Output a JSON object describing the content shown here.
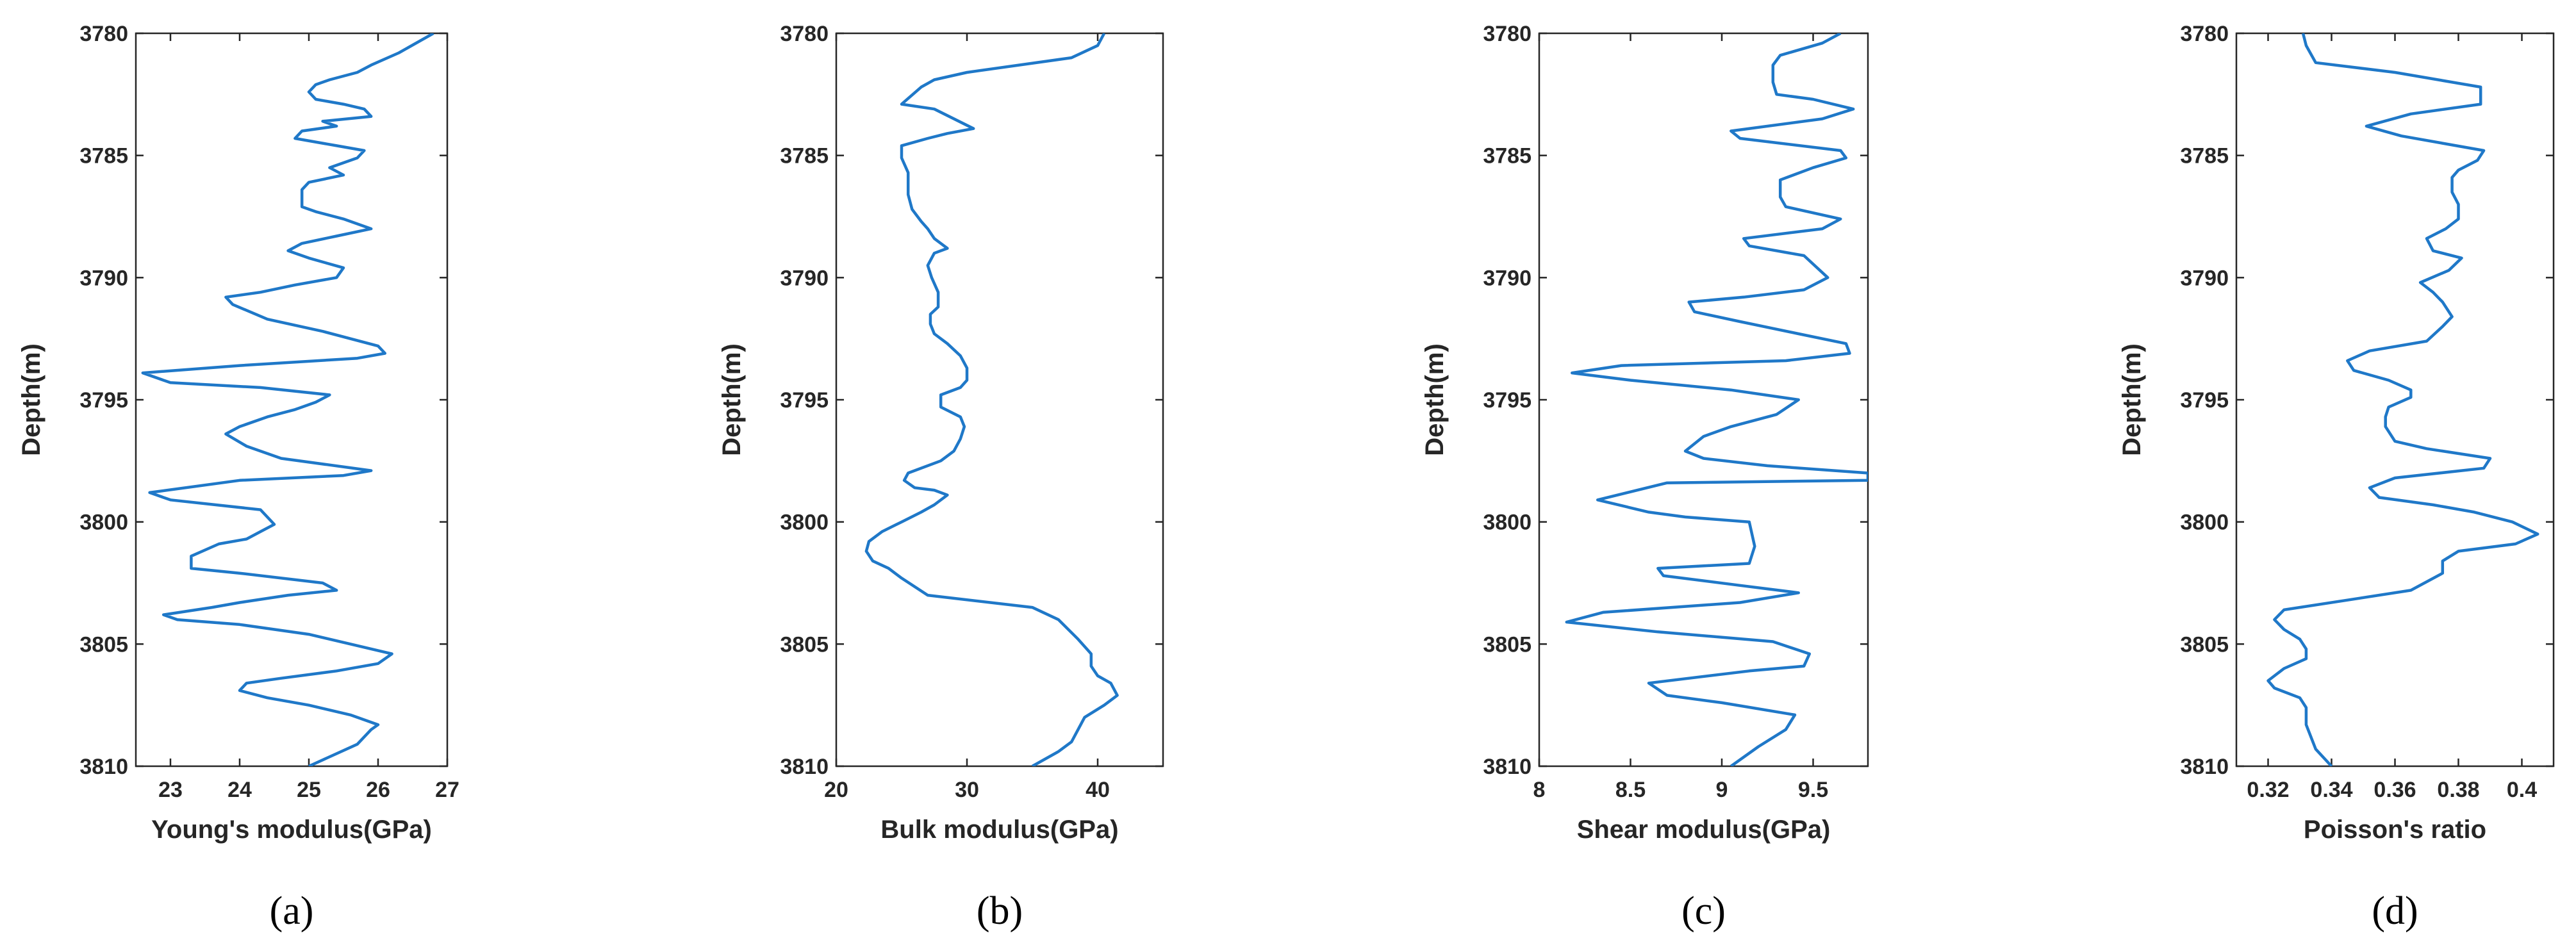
{
  "style": {
    "line_color": "#1f78c8",
    "axis_color": "#262626"
  },
  "chart_data": [
    {
      "type": "line",
      "panel_label": "(a)",
      "xlabel": "Young's modulus(GPa)",
      "ylabel": "Depth(m)",
      "xlim": [
        22.5,
        27
      ],
      "ylim": [
        3780,
        3810
      ],
      "xticks": [
        23,
        24,
        25,
        26,
        27
      ],
      "yticks": [
        3780,
        3785,
        3790,
        3795,
        3800,
        3805,
        3810
      ],
      "x": [
        26.8,
        26.3,
        25.9,
        25.7,
        25.3,
        25.1,
        25.0,
        25.1,
        25.5,
        25.8,
        25.9,
        25.2,
        25.4,
        24.9,
        24.8,
        25.4,
        25.8,
        25.7,
        25.3,
        25.5,
        25.0,
        24.9,
        24.9,
        24.9,
        25.1,
        25.5,
        25.9,
        25.4,
        24.9,
        24.7,
        25.0,
        25.5,
        25.4,
        24.8,
        24.3,
        23.8,
        23.9,
        24.4,
        25.2,
        26.0,
        26.1,
        25.7,
        24.0,
        22.6,
        23.0,
        24.3,
        25.3,
        25.1,
        24.8,
        24.4,
        24.0,
        23.8,
        24.1,
        24.6,
        25.9,
        25.5,
        24.0,
        22.7,
        23.0,
        24.3,
        24.5,
        24.3,
        24.1,
        23.7,
        23.3,
        23.3,
        24.0,
        25.2,
        25.4,
        24.7,
        24.0,
        23.6,
        22.9,
        23.1,
        24.0,
        25.0,
        25.6,
        26.2,
        26.0,
        25.4,
        24.6,
        24.1,
        24.0,
        24.4,
        25.0,
        25.6,
        26.0,
        25.9,
        25.7,
        25.0
      ],
      "y": [
        3780.0,
        3780.8,
        3781.3,
        3781.6,
        3781.9,
        3782.1,
        3782.4,
        3782.7,
        3782.9,
        3783.1,
        3783.4,
        3783.6,
        3783.8,
        3784.0,
        3784.3,
        3784.6,
        3784.8,
        3785.1,
        3785.5,
        3785.8,
        3786.1,
        3786.4,
        3786.7,
        3787.1,
        3787.3,
        3787.6,
        3788.0,
        3788.3,
        3788.6,
        3788.9,
        3789.2,
        3789.6,
        3790.0,
        3790.3,
        3790.6,
        3790.8,
        3791.1,
        3791.7,
        3792.2,
        3792.8,
        3793.1,
        3793.3,
        3793.6,
        3793.9,
        3794.3,
        3794.5,
        3794.8,
        3795.1,
        3795.4,
        3795.7,
        3796.1,
        3796.4,
        3796.9,
        3797.4,
        3797.9,
        3798.1,
        3798.3,
        3798.8,
        3799.1,
        3799.5,
        3800.1,
        3800.4,
        3800.7,
        3800.9,
        3801.4,
        3801.9,
        3802.1,
        3802.5,
        3802.8,
        3803.0,
        3803.3,
        3803.5,
        3803.8,
        3804.0,
        3804.2,
        3804.6,
        3805.0,
        3805.4,
        3805.8,
        3806.1,
        3806.4,
        3806.6,
        3806.9,
        3807.2,
        3807.5,
        3807.9,
        3808.3,
        3808.5,
        3809.1,
        3810.0
      ]
    },
    {
      "type": "line",
      "panel_label": "(b)",
      "xlabel": "Bulk modulus(GPa)",
      "ylabel": "Depth(m)",
      "xlim": [
        20,
        45
      ],
      "ylim": [
        3780,
        3810
      ],
      "xticks": [
        20,
        30,
        40
      ],
      "yticks": [
        3780,
        3785,
        3790,
        3795,
        3800,
        3805,
        3810
      ],
      "x": [
        40.5,
        40.0,
        38.0,
        30.0,
        27.5,
        26.5,
        25.0,
        27.5,
        30.5,
        28.5,
        27.0,
        25.0,
        25.0,
        25.5,
        25.5,
        25.8,
        26.5,
        27.0,
        27.5,
        28.5,
        27.5,
        27.0,
        27.3,
        27.8,
        27.8,
        27.2,
        27.2,
        27.5,
        28.5,
        29.5,
        30.0,
        30.0,
        29.5,
        28.0,
        28.0,
        29.5,
        29.8,
        29.5,
        29.0,
        28.0,
        25.5,
        25.2,
        26.0,
        27.5,
        28.5,
        27.5,
        26.5,
        25.0,
        23.5,
        22.5,
        22.3,
        22.8,
        24.0,
        25.0,
        27.0,
        35.0,
        37.0,
        38.5,
        39.5,
        39.5,
        40.0,
        41.0,
        41.5,
        40.5,
        39.0,
        38.5,
        38.0,
        37.0,
        35.0
      ],
      "y": [
        3780.0,
        3780.5,
        3781.0,
        3781.6,
        3781.9,
        3782.2,
        3782.9,
        3783.1,
        3783.9,
        3784.1,
        3784.3,
        3784.6,
        3785.1,
        3785.7,
        3786.6,
        3787.2,
        3787.7,
        3788.0,
        3788.4,
        3788.8,
        3789.0,
        3789.5,
        3790.0,
        3790.6,
        3791.2,
        3791.5,
        3791.9,
        3792.3,
        3792.7,
        3793.2,
        3793.7,
        3794.2,
        3794.5,
        3794.8,
        3795.3,
        3795.7,
        3796.1,
        3796.6,
        3797.1,
        3797.5,
        3798.0,
        3798.3,
        3798.6,
        3798.7,
        3798.9,
        3799.3,
        3799.6,
        3800.0,
        3800.4,
        3800.8,
        3801.2,
        3801.6,
        3801.9,
        3802.3,
        3803.0,
        3803.5,
        3804.0,
        3804.8,
        3805.4,
        3805.9,
        3806.3,
        3806.6,
        3807.1,
        3807.5,
        3808.0,
        3808.5,
        3809.0,
        3809.4,
        3810.0
      ]
    },
    {
      "type": "line",
      "panel_label": "(c)",
      "xlabel": "Shear modulus(GPa)",
      "ylabel": "Depth(m)",
      "xlim": [
        8,
        9.8
      ],
      "ylim": [
        3780,
        3810
      ],
      "xticks": [
        8,
        8.5,
        9,
        9.5
      ],
      "yticks": [
        3780,
        3785,
        3790,
        3795,
        3800,
        3805,
        3810
      ],
      "x": [
        9.65,
        9.55,
        9.32,
        9.28,
        9.28,
        9.3,
        9.5,
        9.72,
        9.55,
        9.05,
        9.1,
        9.65,
        9.68,
        9.5,
        9.32,
        9.32,
        9.35,
        9.65,
        9.55,
        9.12,
        9.15,
        9.45,
        9.58,
        9.45,
        9.12,
        8.82,
        8.85,
        9.1,
        9.42,
        9.68,
        9.7,
        9.35,
        8.45,
        8.18,
        8.5,
        9.05,
        9.42,
        9.3,
        9.05,
        8.9,
        8.8,
        8.9,
        9.25,
        9.8,
        9.8,
        8.7,
        8.32,
        8.6,
        8.8,
        9.15,
        9.18,
        9.15,
        8.65,
        8.68,
        9.1,
        9.42,
        9.1,
        8.35,
        8.15,
        8.65,
        9.28,
        9.48,
        9.45,
        9.15,
        8.6,
        8.7,
        9.0,
        9.4,
        9.35,
        9.2,
        9.05
      ],
      "y": [
        3780.0,
        3780.4,
        3780.9,
        3781.3,
        3782.0,
        3782.5,
        3782.7,
        3783.1,
        3783.5,
        3784.0,
        3784.3,
        3784.8,
        3785.1,
        3785.5,
        3786.0,
        3786.7,
        3787.1,
        3787.6,
        3788.0,
        3788.4,
        3788.7,
        3789.1,
        3790.0,
        3790.5,
        3790.8,
        3791.0,
        3791.4,
        3791.8,
        3792.3,
        3792.7,
        3793.1,
        3793.4,
        3793.6,
        3793.9,
        3794.2,
        3794.6,
        3795.0,
        3795.6,
        3796.1,
        3796.5,
        3797.1,
        3797.4,
        3797.7,
        3798.0,
        3798.3,
        3798.4,
        3799.1,
        3799.6,
        3799.8,
        3800.0,
        3801.0,
        3801.7,
        3801.9,
        3802.2,
        3802.6,
        3802.9,
        3803.3,
        3803.7,
        3804.1,
        3804.5,
        3804.9,
        3805.4,
        3805.9,
        3806.1,
        3806.6,
        3807.1,
        3807.4,
        3807.9,
        3808.5,
        3809.2,
        3810.0
      ]
    },
    {
      "type": "line",
      "panel_label": "(d)",
      "xlabel": "Poisson's ratio",
      "ylabel": "Depth(m)",
      "xlim": [
        0.31,
        0.41
      ],
      "ylim": [
        3780,
        3810
      ],
      "xticks": [
        0.32,
        0.34,
        0.36,
        0.38,
        0.4
      ],
      "yticks": [
        3780,
        3785,
        3790,
        3795,
        3800,
        3805,
        3810
      ],
      "x": [
        0.331,
        0.332,
        0.335,
        0.36,
        0.387,
        0.387,
        0.365,
        0.351,
        0.362,
        0.388,
        0.386,
        0.38,
        0.378,
        0.378,
        0.38,
        0.38,
        0.376,
        0.37,
        0.372,
        0.381,
        0.377,
        0.368,
        0.372,
        0.375,
        0.378,
        0.375,
        0.37,
        0.352,
        0.345,
        0.347,
        0.358,
        0.365,
        0.365,
        0.358,
        0.357,
        0.357,
        0.36,
        0.37,
        0.39,
        0.388,
        0.36,
        0.352,
        0.355,
        0.372,
        0.385,
        0.397,
        0.405,
        0.398,
        0.38,
        0.375,
        0.375,
        0.365,
        0.345,
        0.325,
        0.322,
        0.325,
        0.33,
        0.332,
        0.332,
        0.325,
        0.32,
        0.322,
        0.33,
        0.332,
        0.332,
        0.335,
        0.34
      ],
      "y": [
        3780.0,
        3780.5,
        3781.2,
        3781.6,
        3782.2,
        3782.9,
        3783.3,
        3783.8,
        3784.2,
        3784.8,
        3785.2,
        3785.6,
        3785.9,
        3786.5,
        3787.0,
        3787.6,
        3788.0,
        3788.4,
        3788.9,
        3789.2,
        3789.7,
        3790.2,
        3790.6,
        3791.0,
        3791.6,
        3792.0,
        3792.6,
        3793.0,
        3793.4,
        3793.8,
        3794.2,
        3794.6,
        3794.9,
        3795.3,
        3795.7,
        3796.1,
        3796.7,
        3797.0,
        3797.4,
        3797.8,
        3798.2,
        3798.6,
        3799.0,
        3799.3,
        3799.6,
        3800.0,
        3800.5,
        3800.9,
        3801.2,
        3801.6,
        3802.1,
        3802.8,
        3803.2,
        3803.6,
        3804.0,
        3804.4,
        3804.8,
        3805.2,
        3805.6,
        3806.0,
        3806.5,
        3806.8,
        3807.2,
        3807.6,
        3808.3,
        3809.3,
        3810.0
      ]
    }
  ]
}
